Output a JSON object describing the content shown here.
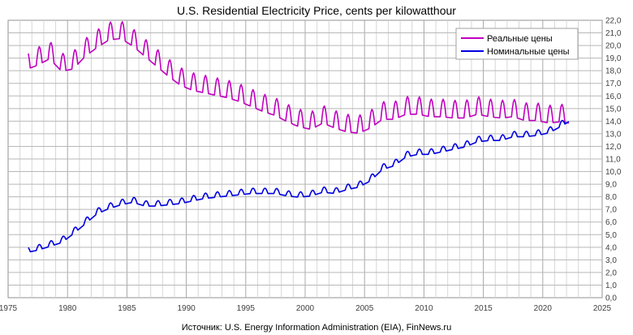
{
  "chart_data": {
    "type": "line",
    "title": "U.S. Residential Electricity Price, cents per kilowatthour",
    "source": "Источник: U.S. Energy Information Administration (EIA), FinNews.ru",
    "xlabel": "",
    "ylabel": "",
    "xlim": [
      1975,
      2025
    ],
    "ylim": [
      0,
      22
    ],
    "x_ticks": [
      1975,
      1980,
      1985,
      1990,
      1995,
      2000,
      2005,
      2010,
      2015,
      2020,
      2025
    ],
    "y_ticks": [
      "0,0",
      "1,0",
      "2,0",
      "3,0",
      "4,0",
      "5,0",
      "6,0",
      "7,0",
      "8,0",
      "9,0",
      "10,0",
      "11,0",
      "12,0",
      "13,0",
      "14,0",
      "15,0",
      "16,0",
      "17,0",
      "18,0",
      "19,0",
      "20,0",
      "21,0",
      "22,0"
    ],
    "grid": true,
    "legend_position": "top-right",
    "series": [
      {
        "name": "Реальные цены",
        "color": "#C000C0",
        "trend": [
          [
            1976.7,
            18.6
          ],
          [
            1977.5,
            18.9
          ],
          [
            1978.5,
            19.4
          ],
          [
            1979.5,
            18.4
          ],
          [
            1980.5,
            18.6
          ],
          [
            1981.5,
            19.6
          ],
          [
            1982.5,
            20.3
          ],
          [
            1983.5,
            20.9
          ],
          [
            1984.5,
            21.0
          ],
          [
            1985.5,
            20.4
          ],
          [
            1986.5,
            19.6
          ],
          [
            1987.5,
            18.8
          ],
          [
            1988.5,
            18.0
          ],
          [
            1989.5,
            17.3
          ],
          [
            1990.5,
            16.9
          ],
          [
            1991.5,
            16.7
          ],
          [
            1992.5,
            16.5
          ],
          [
            1993.5,
            16.3
          ],
          [
            1994.5,
            16.0
          ],
          [
            1995.5,
            15.6
          ],
          [
            1996.5,
            15.2
          ],
          [
            1997.5,
            14.9
          ],
          [
            1998.5,
            14.4
          ],
          [
            1999.5,
            14.0
          ],
          [
            2000.5,
            13.8
          ],
          [
            2001.5,
            14.3
          ],
          [
            2002.5,
            13.9
          ],
          [
            2003.5,
            13.6
          ],
          [
            2004.5,
            13.5
          ],
          [
            2005.5,
            13.9
          ],
          [
            2006.5,
            14.6
          ],
          [
            2007.5,
            14.6
          ],
          [
            2008.5,
            15.0
          ],
          [
            2009.5,
            15.0
          ],
          [
            2010.5,
            14.8
          ],
          [
            2011.5,
            14.8
          ],
          [
            2012.5,
            14.7
          ],
          [
            2013.5,
            14.7
          ],
          [
            2014.5,
            15.0
          ],
          [
            2015.5,
            14.8
          ],
          [
            2016.5,
            14.7
          ],
          [
            2017.5,
            14.8
          ],
          [
            2018.5,
            14.5
          ],
          [
            2019.5,
            14.5
          ],
          [
            2020.5,
            14.3
          ],
          [
            2021.5,
            14.4
          ],
          [
            2022.2,
            14.3
          ]
        ],
        "seasonal_amplitude": 1.0
      },
      {
        "name": "Номинальные цены",
        "color": "#0000E0",
        "trend": [
          [
            1976.7,
            3.75
          ],
          [
            1977.5,
            3.9
          ],
          [
            1978.5,
            4.2
          ],
          [
            1979.5,
            4.5
          ],
          [
            1980.5,
            5.2
          ],
          [
            1981.5,
            6.0
          ],
          [
            1982.5,
            6.8
          ],
          [
            1983.5,
            7.2
          ],
          [
            1984.5,
            7.5
          ],
          [
            1985.5,
            7.7
          ],
          [
            1986.5,
            7.4
          ],
          [
            1987.5,
            7.4
          ],
          [
            1988.5,
            7.5
          ],
          [
            1989.5,
            7.6
          ],
          [
            1990.5,
            7.8
          ],
          [
            1991.5,
            8.0
          ],
          [
            1992.5,
            8.1
          ],
          [
            1993.5,
            8.2
          ],
          [
            1994.5,
            8.3
          ],
          [
            1995.5,
            8.4
          ],
          [
            1996.5,
            8.4
          ],
          [
            1997.5,
            8.4
          ],
          [
            1998.5,
            8.2
          ],
          [
            1999.5,
            8.1
          ],
          [
            2000.5,
            8.2
          ],
          [
            2001.5,
            8.5
          ],
          [
            2002.5,
            8.4
          ],
          [
            2003.5,
            8.7
          ],
          [
            2004.5,
            8.9
          ],
          [
            2005.5,
            9.4
          ],
          [
            2006.5,
            10.3
          ],
          [
            2007.5,
            10.6
          ],
          [
            2008.5,
            11.3
          ],
          [
            2009.5,
            11.5
          ],
          [
            2010.5,
            11.5
          ],
          [
            2011.5,
            11.7
          ],
          [
            2012.5,
            11.9
          ],
          [
            2013.5,
            12.1
          ],
          [
            2014.5,
            12.5
          ],
          [
            2015.5,
            12.6
          ],
          [
            2016.5,
            12.6
          ],
          [
            2017.5,
            12.9
          ],
          [
            2018.5,
            12.9
          ],
          [
            2019.5,
            13.0
          ],
          [
            2020.5,
            13.2
          ],
          [
            2021.5,
            13.7
          ],
          [
            2022.2,
            14.1
          ]
        ],
        "seasonal_amplitude": 0.3
      }
    ]
  }
}
